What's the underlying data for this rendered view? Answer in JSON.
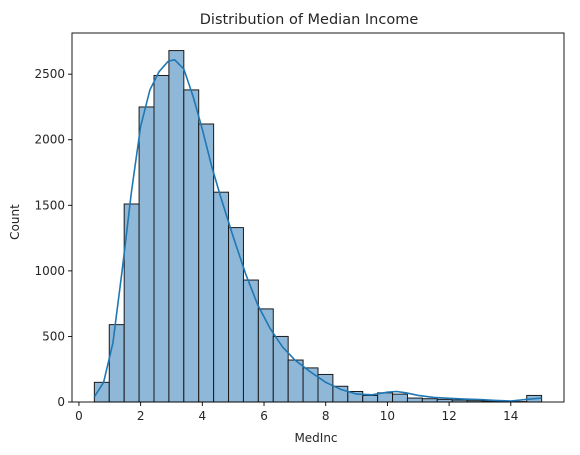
{
  "chart_data": {
    "type": "bar",
    "title": "Distribution of Median Income",
    "xlabel": "MedInc",
    "ylabel": "Count",
    "bin_start": 0.4999,
    "bin_width": 0.48333,
    "values": [
      150,
      590,
      1510,
      2250,
      2490,
      2680,
      2380,
      2120,
      1600,
      1330,
      930,
      710,
      500,
      320,
      260,
      210,
      120,
      80,
      50,
      70,
      60,
      30,
      25,
      20,
      15,
      10,
      8,
      5,
      3,
      50
    ],
    "kde": [
      [
        0.5,
        40
      ],
      [
        0.8,
        150
      ],
      [
        1.1,
        450
      ],
      [
        1.4,
        1000
      ],
      [
        1.7,
        1600
      ],
      [
        2.0,
        2100
      ],
      [
        2.3,
        2380
      ],
      [
        2.6,
        2520
      ],
      [
        2.9,
        2600
      ],
      [
        3.1,
        2610
      ],
      [
        3.4,
        2540
      ],
      [
        3.7,
        2330
      ],
      [
        4.0,
        2080
      ],
      [
        4.3,
        1800
      ],
      [
        4.6,
        1560
      ],
      [
        5.0,
        1260
      ],
      [
        5.4,
        980
      ],
      [
        5.8,
        740
      ],
      [
        6.2,
        560
      ],
      [
        6.6,
        420
      ],
      [
        7.0,
        320
      ],
      [
        7.5,
        230
      ],
      [
        8.0,
        150
      ],
      [
        8.5,
        95
      ],
      [
        9.0,
        60
      ],
      [
        9.5,
        55
      ],
      [
        10.0,
        75
      ],
      [
        10.3,
        80
      ],
      [
        10.6,
        70
      ],
      [
        11.0,
        50
      ],
      [
        11.5,
        35
      ],
      [
        12.0,
        28
      ],
      [
        12.5,
        22
      ],
      [
        13.0,
        18
      ],
      [
        13.5,
        12
      ],
      [
        14.0,
        8
      ],
      [
        14.5,
        20
      ],
      [
        15.0,
        30
      ]
    ],
    "xlim": [
      -0.225,
      15.725
    ],
    "ylim": [
      0,
      2814
    ],
    "xticks": [
      0,
      2,
      4,
      6,
      8,
      10,
      12,
      14
    ],
    "yticks": [
      0,
      500,
      1000,
      1500,
      2000,
      2500
    ],
    "bar_color": "#8fb8d8",
    "bar_edge": "#1a1a1a",
    "line_color": "#1f77b4",
    "grid": false
  }
}
